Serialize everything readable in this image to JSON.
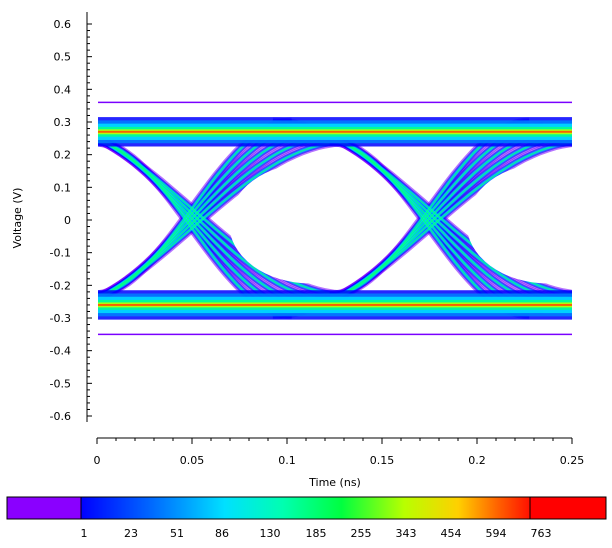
{
  "chart_data": {
    "type": "heatmap",
    "subtype": "eye-diagram",
    "title": "",
    "xlabel": "Time (ns)",
    "ylabel": "Voltage (V)",
    "xlim": [
      0,
      0.25
    ],
    "ylim": [
      -0.6,
      0.6
    ],
    "x_ticks": [
      0,
      0.05,
      0.1,
      0.15,
      0.2,
      0.25
    ],
    "x_tick_labels": [
      "0",
      "0.05",
      "0.1",
      "0.15",
      "0.2",
      "0.25"
    ],
    "y_ticks": [
      0.6,
      0.5,
      0.4,
      0.3,
      0.2,
      0.1,
      0,
      -0.1,
      -0.2,
      -0.3,
      -0.4,
      -0.5,
      -0.6
    ],
    "y_tick_labels": [
      "0.6",
      "0.5",
      "0.4",
      "0.3",
      "0.2",
      "0.1",
      "0",
      "-0.1",
      "-0.2",
      "-0.3",
      "-0.4",
      "-0.5",
      "-0.6"
    ],
    "grid": false,
    "eye": {
      "high_level": 0.27,
      "low_level": -0.26,
      "crossing_times": [
        0.05,
        0.175
      ],
      "eye_center_times": [
        0.112,
        0.237
      ],
      "unit_interval": 0.125,
      "data_span": [
        0,
        0.25
      ]
    },
    "colorbar": {
      "position": "bottom",
      "labels": [
        "1",
        "23",
        "51",
        "86",
        "130",
        "185",
        "255",
        "343",
        "454",
        "594",
        "763"
      ],
      "colors": [
        "#8a00ff",
        "#0000ff",
        "#0064ff",
        "#00c8ff",
        "#00ffd0",
        "#00ff64",
        "#64ff00",
        "#d4ff00",
        "#ffd000",
        "#ff6400",
        "#ff0000"
      ]
    }
  }
}
